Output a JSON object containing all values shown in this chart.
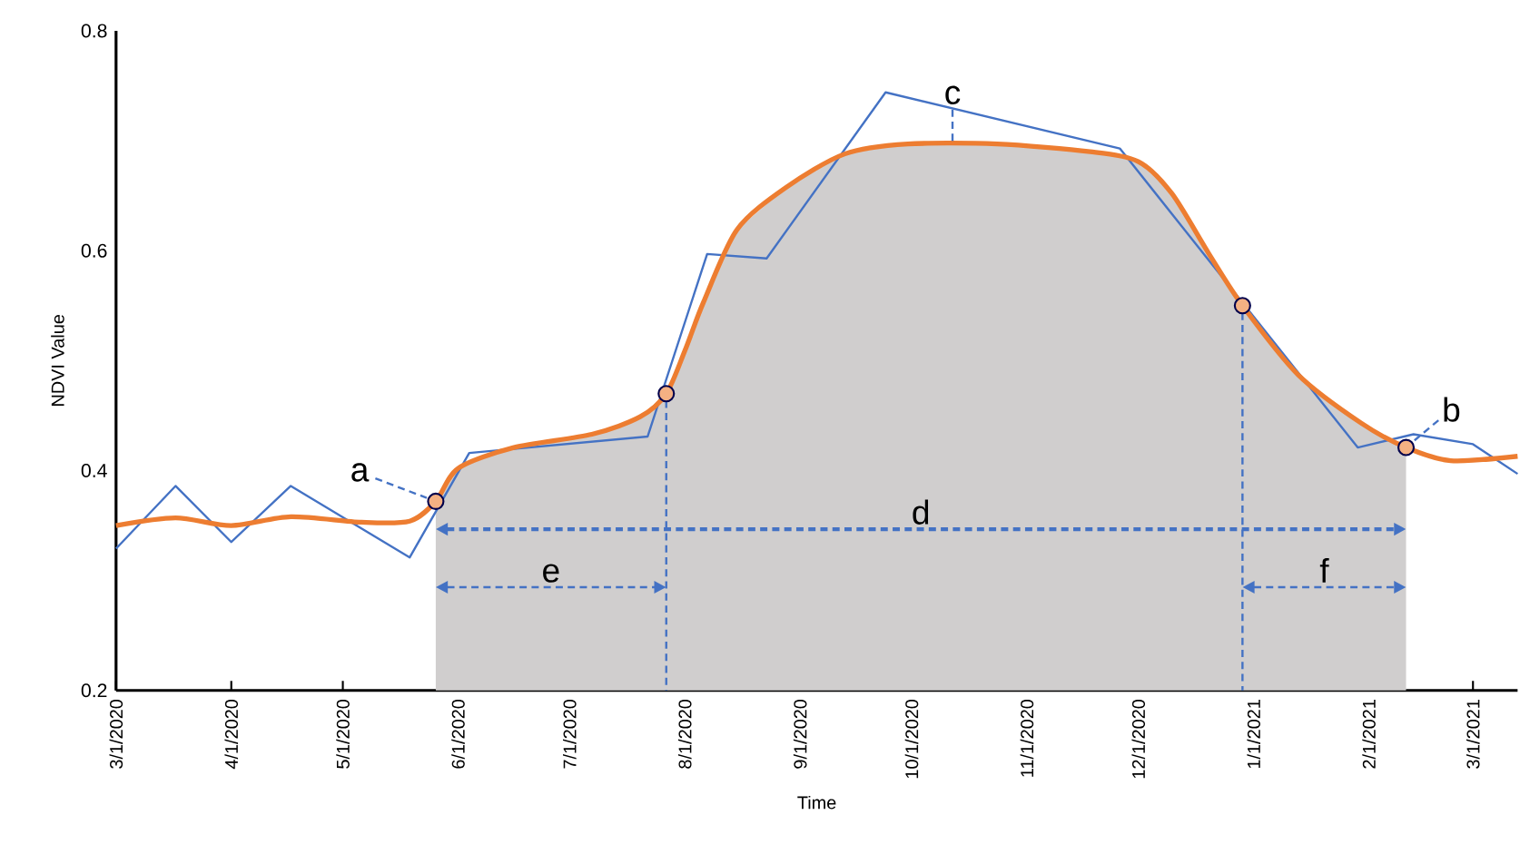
{
  "chart_data": {
    "type": "line",
    "xlabel": "Time",
    "ylabel": "NDVI Value",
    "xlim": [
      "2020-03-01",
      "2021-03-13"
    ],
    "xticks": [
      {
        "value": "2020-03-01",
        "label": "3/1/2020"
      },
      {
        "value": "2020-04-01",
        "label": "4/1/2020"
      },
      {
        "value": "2020-05-01",
        "label": "5/1/2020"
      },
      {
        "value": "2020-06-01",
        "label": "6/1/2020"
      },
      {
        "value": "2020-07-01",
        "label": "7/1/2020"
      },
      {
        "value": "2020-08-01",
        "label": "8/1/2020"
      },
      {
        "value": "2020-09-01",
        "label": "9/1/2020"
      },
      {
        "value": "2020-10-01",
        "label": "10/1/2020"
      },
      {
        "value": "2020-11-01",
        "label": "11/1/2020"
      },
      {
        "value": "2020-12-01",
        "label": "12/1/2020"
      },
      {
        "value": "2021-01-01",
        "label": "1/1/2021"
      },
      {
        "value": "2021-02-01",
        "label": "2/1/2021"
      },
      {
        "value": "2021-03-01",
        "label": "3/1/2021"
      }
    ],
    "ylim": [
      0.2,
      0.8
    ],
    "yticks": [
      0.2,
      0.4,
      0.6,
      0.8
    ],
    "grid": false,
    "series": [
      {
        "type": "area",
        "color": "#d0cece",
        "x": [
          "2020-05-26",
          "2020-06-01",
          "2020-06-16",
          "2020-07-07",
          "2020-07-20",
          "2020-07-27",
          "2020-08-01",
          "2020-08-06",
          "2020-08-15",
          "2020-08-28",
          "2020-09-13",
          "2020-09-30",
          "2020-10-24",
          "2020-11-18",
          "2020-12-01",
          "2020-12-10",
          "2020-12-20",
          "2020-12-29",
          "2021-01-13",
          "2021-01-30",
          "2021-02-11"
        ],
        "values": [
          0.372,
          0.402,
          0.421,
          0.433,
          0.449,
          0.47,
          0.509,
          0.553,
          0.619,
          0.657,
          0.688,
          0.697,
          0.697,
          0.69,
          0.681,
          0.652,
          0.597,
          0.55,
          0.487,
          0.443,
          0.421
        ]
      },
      {
        "color": "#4472c4",
        "x": [
          "2020-03-01",
          "2020-03-17",
          "2020-04-01",
          "2020-04-17",
          "2020-05-19",
          "2020-06-04",
          "2020-07-22",
          "2020-08-07",
          "2020-08-23",
          "2020-09-24",
          "2020-11-26",
          "2021-01-29",
          "2021-02-13",
          "2021-03-01",
          "2021-03-13"
        ],
        "values": [
          0.329,
          0.386,
          0.335,
          0.386,
          0.321,
          0.416,
          0.431,
          0.597,
          0.593,
          0.744,
          0.693,
          0.421,
          0.433,
          0.424,
          0.397
        ]
      },
      {
        "color": "#ed7d31",
        "x": [
          "2020-03-01",
          "2020-03-17",
          "2020-04-01",
          "2020-04-17",
          "2020-05-06",
          "2020-05-19",
          "2020-05-26",
          "2020-06-01",
          "2020-06-16",
          "2020-07-07",
          "2020-07-20",
          "2020-07-27",
          "2020-08-01",
          "2020-08-06",
          "2020-08-15",
          "2020-08-28",
          "2020-09-13",
          "2020-09-30",
          "2020-10-24",
          "2020-11-18",
          "2020-12-01",
          "2020-12-10",
          "2020-12-20",
          "2020-12-29",
          "2021-01-13",
          "2021-01-30",
          "2021-02-11",
          "2021-02-23",
          "2021-03-13"
        ],
        "values": [
          0.35,
          0.357,
          0.35,
          0.358,
          0.353,
          0.354,
          0.372,
          0.402,
          0.421,
          0.433,
          0.449,
          0.47,
          0.509,
          0.553,
          0.619,
          0.657,
          0.688,
          0.697,
          0.697,
          0.69,
          0.681,
          0.652,
          0.597,
          0.55,
          0.487,
          0.443,
          0.421,
          0.409,
          0.413
        ]
      },
      {
        "type": "scatter",
        "marker": "circle",
        "color": "#f4b183",
        "x": [
          "2020-05-26",
          "2020-07-27",
          "2020-12-29",
          "2021-02-11"
        ],
        "values": [
          0.372,
          0.47,
          0.55,
          0.421
        ]
      }
    ],
    "ref_lines": [
      {
        "axis": "x",
        "value": "2020-07-27",
        "color": "#4472c4",
        "line_style": "dashed"
      },
      {
        "axis": "x",
        "value": "2020-12-29",
        "color": "#4472c4",
        "line_style": "dashed"
      }
    ],
    "annotations": [
      {
        "text": "a",
        "x": "2020-05-26",
        "y": 0.372
      },
      {
        "text": "b",
        "x": "2021-02-11",
        "y": 0.421
      },
      "c",
      "d",
      "e",
      "f"
    ]
  }
}
